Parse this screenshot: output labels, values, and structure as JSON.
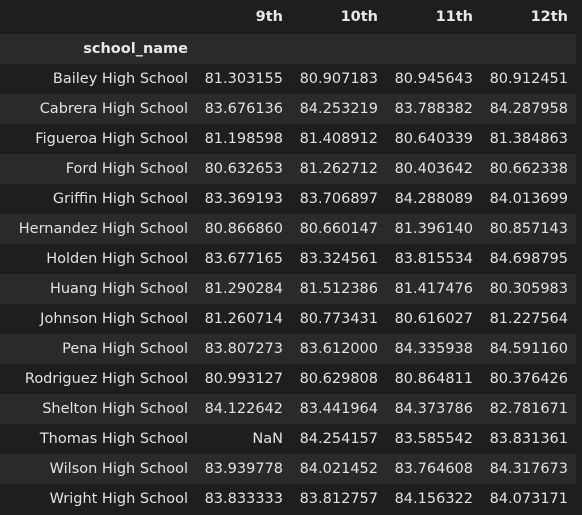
{
  "table": {
    "columns": [
      "9th",
      "10th",
      "11th",
      "12th"
    ],
    "index_name": "school_name",
    "rows": [
      {
        "name": "Bailey High School",
        "values": [
          "81.303155",
          "80.907183",
          "80.945643",
          "80.912451"
        ]
      },
      {
        "name": "Cabrera High School",
        "values": [
          "83.676136",
          "84.253219",
          "83.788382",
          "84.287958"
        ]
      },
      {
        "name": "Figueroa High School",
        "values": [
          "81.198598",
          "81.408912",
          "80.640339",
          "81.384863"
        ]
      },
      {
        "name": "Ford High School",
        "values": [
          "80.632653",
          "81.262712",
          "80.403642",
          "80.662338"
        ]
      },
      {
        "name": "Griffin High School",
        "values": [
          "83.369193",
          "83.706897",
          "84.288089",
          "84.013699"
        ]
      },
      {
        "name": "Hernandez High School",
        "values": [
          "80.866860",
          "80.660147",
          "81.396140",
          "80.857143"
        ]
      },
      {
        "name": "Holden High School",
        "values": [
          "83.677165",
          "83.324561",
          "83.815534",
          "84.698795"
        ]
      },
      {
        "name": "Huang High School",
        "values": [
          "81.290284",
          "81.512386",
          "81.417476",
          "80.305983"
        ]
      },
      {
        "name": "Johnson High School",
        "values": [
          "81.260714",
          "80.773431",
          "80.616027",
          "81.227564"
        ]
      },
      {
        "name": "Pena High School",
        "values": [
          "83.807273",
          "83.612000",
          "84.335938",
          "84.591160"
        ]
      },
      {
        "name": "Rodriguez High School",
        "values": [
          "80.993127",
          "80.629808",
          "80.864811",
          "80.376426"
        ]
      },
      {
        "name": "Shelton High School",
        "values": [
          "84.122642",
          "83.441964",
          "84.373786",
          "82.781671"
        ]
      },
      {
        "name": "Thomas High School",
        "values": [
          "NaN",
          "84.254157",
          "83.585542",
          "83.831361"
        ]
      },
      {
        "name": "Wilson High School",
        "values": [
          "83.939778",
          "84.021452",
          "83.764608",
          "84.317673"
        ]
      },
      {
        "name": "Wright High School",
        "values": [
          "83.833333",
          "83.812757",
          "84.156322",
          "84.073171"
        ]
      }
    ]
  },
  "colors": {
    "background": "#1e1e1e",
    "stripe": "#2a2a2a",
    "text": "#e2e2e2"
  }
}
